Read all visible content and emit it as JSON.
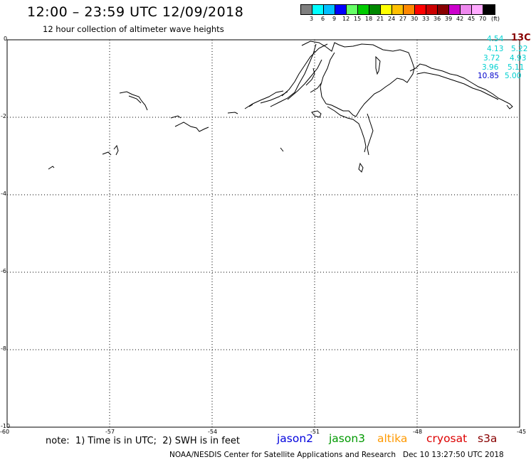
{
  "header": {
    "title": "12:00 – 23:59 UTC 12/09/2018",
    "subtitle": "12 hour collection of altimeter wave heights"
  },
  "legend": {
    "unit": "(ft)",
    "labels": [
      "3",
      "6",
      "9",
      "12",
      "15",
      "18",
      "21",
      "24",
      "27",
      "30",
      "33",
      "36",
      "39",
      "42",
      "45",
      "70"
    ],
    "colors": [
      "#7f7f7f",
      "#00ffff",
      "#00bfff",
      "#0000ff",
      "#66ff66",
      "#00cc00",
      "#008800",
      "#ffff00",
      "#ffc000",
      "#ff8800",
      "#ff0000",
      "#cc0000",
      "#880000",
      "#cc00cc",
      "#ee88ee",
      "#ffaaff",
      "#000000"
    ]
  },
  "axes": {
    "x_ticks": [
      "-60",
      "-57",
      "-54",
      "-51",
      "-48",
      "-45"
    ],
    "y_ticks": [
      "0",
      "-2",
      "-4",
      "-6",
      "-8",
      "-10"
    ]
  },
  "readings": [
    {
      "text": "4.54",
      "color": "#00d0d0"
    },
    {
      "text": "13C",
      "color": "#880000"
    },
    {
      "text": "4.13",
      "color": "#00d0d0"
    },
    {
      "text": "5.22",
      "color": "#00d0d0"
    },
    {
      "text": "3.72",
      "color": "#00d0d0"
    },
    {
      "text": "4.93",
      "color": "#00d0d0"
    },
    {
      "text": "3.96",
      "color": "#00d0d0"
    },
    {
      "text": "5.11",
      "color": "#00d0d0"
    },
    {
      "text": "10.85",
      "color": "#0000cc"
    },
    {
      "text": "5.00",
      "color": "#00d0d0"
    }
  ],
  "footer": {
    "note": "note:  1) Time is in UTC;  2) SWH is in feet",
    "satellites": [
      {
        "name": "jason2",
        "color": "#0000dd"
      },
      {
        "name": "jason3",
        "color": "#009900"
      },
      {
        "name": "altika",
        "color": "#ff9900"
      },
      {
        "name": "cryosat",
        "color": "#dd0000"
      },
      {
        "name": "s3a",
        "color": "#880000"
      }
    ],
    "credit": "NOAA/NESDIS Center for Satellite Applications and Research   Dec 10 13:27:50 UTC 2018"
  }
}
